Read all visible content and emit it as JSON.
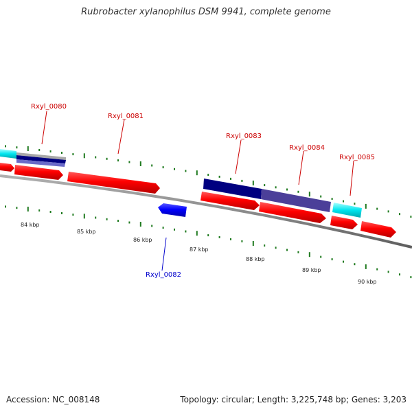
{
  "title": "Rubrobacter xylanophilus DSM 9941, complete genome",
  "footer": {
    "accession": "Accession: NC_008148",
    "stats": "Topology: circular; Length: 3,225,748 bp; Genes: 3,203"
  },
  "colors": {
    "backbone": "#8c8c8c",
    "tick": "#1f7a1f",
    "gene_label": "#cc0000",
    "reverse_label": "#0000cc",
    "cds_forward": "#ff0000",
    "cds_reverse": "#0000ff",
    "feature_cyan": "#00e5ee",
    "feature_navy": "#000080",
    "feature_slate": "#4b3f99"
  },
  "scale_labels": [
    "84 kbp",
    "85 kbp",
    "86 kbp",
    "87 kbp",
    "88 kbp",
    "89 kbp",
    "90 kbp"
  ],
  "gene_labels": [
    {
      "text": "Rxyl_0080",
      "strand": "forward"
    },
    {
      "text": "Rxyl_0081",
      "strand": "forward"
    },
    {
      "text": "Rxyl_0082",
      "strand": "reverse"
    },
    {
      "text": "Rxyl_0083",
      "strand": "forward"
    },
    {
      "text": "Rxyl_0084",
      "strand": "forward"
    },
    {
      "text": "Rxyl_0085",
      "strand": "forward"
    }
  ]
}
